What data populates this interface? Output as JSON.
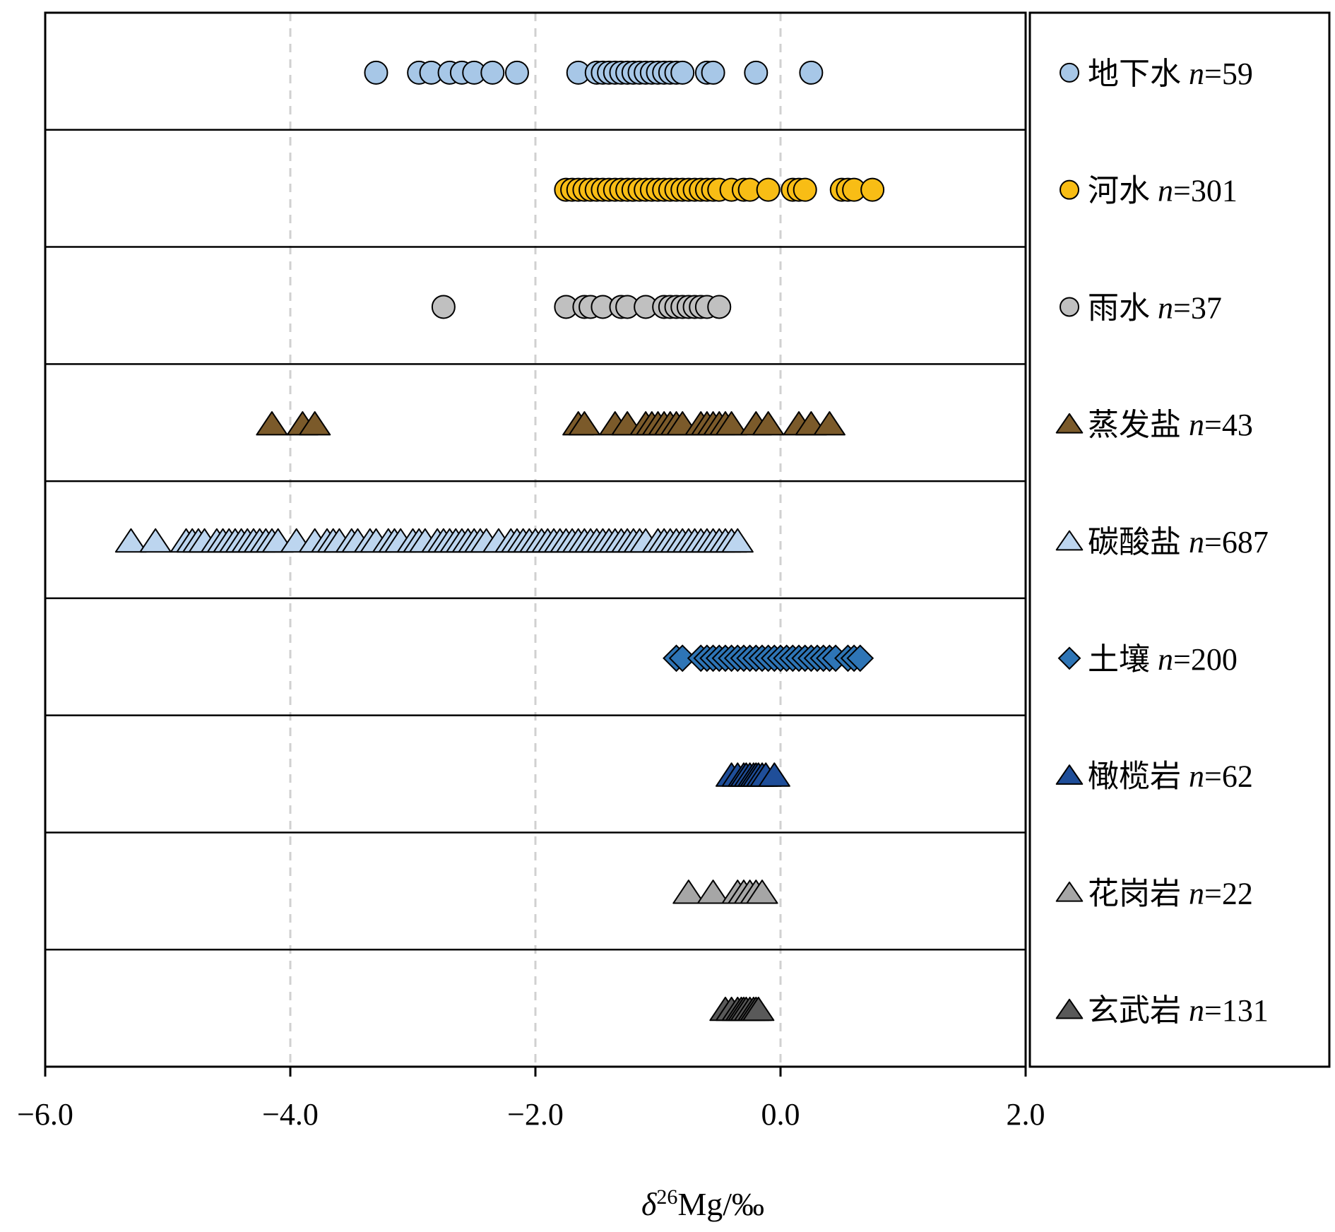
{
  "chart_data": {
    "type": "scatter",
    "xlabel_main": "δ",
    "xlabel_sup": "26",
    "xlabel_rest": "Mg/‰",
    "xlim": [
      -6.0,
      2.0
    ],
    "xticks": [
      "−6.0",
      "−4.0",
      "−2.0",
      "0.0",
      "2.0"
    ],
    "xtick_values": [
      -6,
      -4,
      -2,
      0,
      2
    ],
    "grid": "vertical dashed at −4.0, −2.0, 0.0",
    "legend_position": "right",
    "series": [
      {
        "name": "地下水",
        "n": "59",
        "marker": "circle",
        "color": "#a7c7e7",
        "values": [
          -3.3,
          -2.95,
          -2.85,
          -2.7,
          -2.6,
          -2.5,
          -2.35,
          -2.15,
          -1.65,
          -1.5,
          -1.45,
          -1.4,
          -1.35,
          -1.3,
          -1.25,
          -1.2,
          -1.15,
          -1.1,
          -1.05,
          -1.0,
          -0.95,
          -0.9,
          -0.85,
          -0.8,
          -0.6,
          -0.55,
          -0.2,
          0.25
        ]
      },
      {
        "name": "河水",
        "n": "301",
        "marker": "circle",
        "color": "#f8bd15",
        "values": [
          -1.75,
          -1.7,
          -1.65,
          -1.6,
          -1.55,
          -1.5,
          -1.45,
          -1.4,
          -1.35,
          -1.3,
          -1.25,
          -1.2,
          -1.15,
          -1.1,
          -1.05,
          -1.0,
          -0.95,
          -0.9,
          -0.85,
          -0.8,
          -0.75,
          -0.7,
          -0.65,
          -0.6,
          -0.55,
          -0.5,
          -0.4,
          -0.3,
          -0.25,
          -0.1,
          0.1,
          0.15,
          0.2,
          0.5,
          0.55,
          0.6,
          0.75
        ]
      },
      {
        "name": "雨水",
        "n": "37",
        "marker": "circle",
        "color": "#c0c0c0",
        "values": [
          -2.75,
          -1.75,
          -1.6,
          -1.55,
          -1.45,
          -1.3,
          -1.25,
          -1.1,
          -0.95,
          -0.9,
          -0.85,
          -0.8,
          -0.75,
          -0.7,
          -0.65,
          -0.6,
          -0.5
        ]
      },
      {
        "name": "蒸发盐",
        "n": "43",
        "marker": "triangle",
        "color": "#7b5a2a",
        "values": [
          -4.15,
          -3.9,
          -3.8,
          -1.65,
          -1.6,
          -1.35,
          -1.25,
          -1.1,
          -1.05,
          -1.0,
          -0.95,
          -0.9,
          -0.85,
          -0.8,
          -0.65,
          -0.6,
          -0.55,
          -0.5,
          -0.45,
          -0.4,
          -0.2,
          -0.1,
          0.15,
          0.25,
          0.4
        ]
      },
      {
        "name": "碳酸盐",
        "n": "687",
        "marker": "triangle",
        "color": "#bcd5ef",
        "values": [
          -5.3,
          -5.1,
          -4.85,
          -4.8,
          -4.75,
          -4.7,
          -4.6,
          -4.55,
          -4.5,
          -4.45,
          -4.4,
          -4.35,
          -4.3,
          -4.25,
          -4.2,
          -4.15,
          -4.1,
          -3.95,
          -3.8,
          -3.7,
          -3.65,
          -3.6,
          -3.5,
          -3.45,
          -3.35,
          -3.3,
          -3.2,
          -3.15,
          -3.1,
          -3.0,
          -2.95,
          -2.9,
          -2.8,
          -2.75,
          -2.7,
          -2.65,
          -2.6,
          -2.55,
          -2.5,
          -2.45,
          -2.4,
          -2.3,
          -2.2,
          -2.15,
          -2.1,
          -2.05,
          -2.0,
          -1.95,
          -1.9,
          -1.85,
          -1.8,
          -1.75,
          -1.7,
          -1.65,
          -1.6,
          -1.55,
          -1.5,
          -1.45,
          -1.4,
          -1.35,
          -1.3,
          -1.25,
          -1.2,
          -1.15,
          -1.1,
          -1.0,
          -0.95,
          -0.9,
          -0.85,
          -0.8,
          -0.75,
          -0.7,
          -0.65,
          -0.6,
          -0.55,
          -0.5,
          -0.45,
          -0.4,
          -0.35
        ]
      },
      {
        "name": "土壤",
        "n": "200",
        "marker": "diamond",
        "color": "#2e75b6",
        "values": [
          -0.85,
          -0.8,
          -0.65,
          -0.6,
          -0.55,
          -0.5,
          -0.45,
          -0.4,
          -0.35,
          -0.3,
          -0.25,
          -0.2,
          -0.15,
          -0.1,
          -0.05,
          0.0,
          0.05,
          0.1,
          0.15,
          0.2,
          0.25,
          0.3,
          0.35,
          0.4,
          0.45,
          0.55,
          0.6,
          0.65
        ]
      },
      {
        "name": "橄榄岩",
        "n": "62",
        "marker": "triangle",
        "color": "#1f4e99",
        "values": [
          -0.4,
          -0.35,
          -0.3,
          -0.28,
          -0.25,
          -0.22,
          -0.2,
          -0.18,
          -0.15,
          -0.12,
          -0.05
        ]
      },
      {
        "name": "花岗岩",
        "n": "22",
        "marker": "triangle",
        "color": "#a6a6a6",
        "values": [
          -0.75,
          -0.55,
          -0.35,
          -0.3,
          -0.25,
          -0.2,
          -0.15
        ]
      },
      {
        "name": "玄武岩",
        "n": "131",
        "marker": "triangle",
        "color": "#595959",
        "values": [
          -0.45,
          -0.4,
          -0.35,
          -0.32,
          -0.3,
          -0.28,
          -0.25,
          -0.22,
          -0.2,
          -0.18
        ]
      }
    ]
  }
}
